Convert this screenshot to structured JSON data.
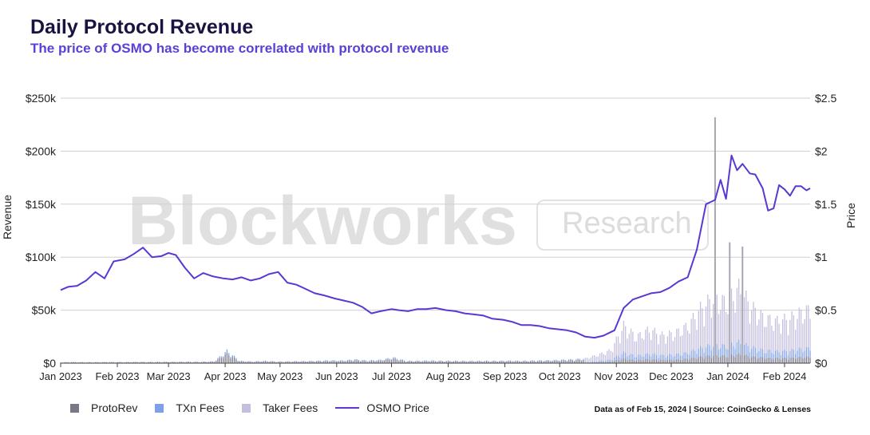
{
  "header": {
    "title": "Daily Protocol Revenue",
    "subtitle": "The price of OSMO has become correlated with protocol revenue"
  },
  "watermark": {
    "brand": "Blockworks",
    "tag": "Research"
  },
  "footer": {
    "source": "Data as of Feb 15, 2024 | Source: CoinGecko & Lenses"
  },
  "colors": {
    "protorev": "#7a7788",
    "txn_fees": "#7ea0ec",
    "taker_fees": "#c4bedf",
    "price": "#5a38d1",
    "grid": "#cfcfcf",
    "watermark": "#e0e0e0"
  },
  "chart_data": {
    "type": "bar",
    "stacked": true,
    "x_axis": {
      "type": "date",
      "range": [
        "2023-01-01",
        "2024-02-15"
      ],
      "tick_labels": [
        "Jan 2023",
        "Feb 2023",
        "Mar 2023",
        "Apr 2023",
        "May 2023",
        "Jun 2023",
        "Jul 2023",
        "Aug 2023",
        "Sep 2023",
        "Oct 2023",
        "Nov 2023",
        "Dec 2023",
        "Jan 2024",
        "Feb 2024"
      ]
    },
    "y_axis_left": {
      "label": "Revenue",
      "range": [
        0,
        250000
      ],
      "tick_values": [
        0,
        50000,
        100000,
        150000,
        200000,
        250000
      ],
      "tick_labels": [
        "$0",
        "$50k",
        "$100k",
        "$150k",
        "$200k",
        "$250k"
      ]
    },
    "y_axis_right": {
      "label": "Price",
      "range": [
        0,
        2.5
      ],
      "tick_values": [
        0,
        0.5,
        1,
        1.5,
        2,
        2.5
      ],
      "tick_labels": [
        "$0",
        "$0.5",
        "$1",
        "$1.5",
        "$2",
        "$2.5"
      ]
    },
    "grid": true,
    "legend": {
      "position": "bottom-left",
      "entries": [
        "ProtoRev",
        "TXn Fees",
        "Taker Fees",
        "OSMO Price"
      ]
    },
    "bar_series": [
      {
        "name": "ProtoRev",
        "color_key": "protorev"
      },
      {
        "name": "TXn Fees",
        "color_key": "txn_fees"
      },
      {
        "name": "Taker Fees",
        "color_key": "taker_fees"
      }
    ],
    "revenue_weekly_totals": [
      {
        "date": "2023-01-01",
        "total": 1000
      },
      {
        "date": "2023-01-08",
        "total": 1200
      },
      {
        "date": "2023-01-15",
        "total": 1000
      },
      {
        "date": "2023-01-22",
        "total": 1100
      },
      {
        "date": "2023-01-29",
        "total": 1300
      },
      {
        "date": "2023-02-05",
        "total": 1200
      },
      {
        "date": "2023-02-12",
        "total": 1400
      },
      {
        "date": "2023-02-19",
        "total": 1300
      },
      {
        "date": "2023-02-26",
        "total": 1500
      },
      {
        "date": "2023-03-05",
        "total": 1400
      },
      {
        "date": "2023-03-12",
        "total": 1600
      },
      {
        "date": "2023-03-19",
        "total": 1500
      },
      {
        "date": "2023-03-26",
        "total": 2000
      },
      {
        "date": "2023-04-02",
        "total": 13000
      },
      {
        "date": "2023-04-09",
        "total": 2500
      },
      {
        "date": "2023-04-16",
        "total": 1800
      },
      {
        "date": "2023-04-23",
        "total": 2500
      },
      {
        "date": "2023-04-30",
        "total": 1700
      },
      {
        "date": "2023-05-07",
        "total": 2000
      },
      {
        "date": "2023-05-14",
        "total": 2200
      },
      {
        "date": "2023-05-21",
        "total": 2500
      },
      {
        "date": "2023-05-28",
        "total": 3000
      },
      {
        "date": "2023-06-04",
        "total": 2800
      },
      {
        "date": "2023-06-11",
        "total": 4000
      },
      {
        "date": "2023-06-18",
        "total": 2800
      },
      {
        "date": "2023-06-25",
        "total": 3500
      },
      {
        "date": "2023-07-02",
        "total": 6000
      },
      {
        "date": "2023-07-09",
        "total": 2500
      },
      {
        "date": "2023-07-16",
        "total": 2500
      },
      {
        "date": "2023-07-23",
        "total": 2800
      },
      {
        "date": "2023-07-30",
        "total": 2500
      },
      {
        "date": "2023-08-06",
        "total": 2500
      },
      {
        "date": "2023-08-13",
        "total": 2400
      },
      {
        "date": "2023-08-20",
        "total": 2500
      },
      {
        "date": "2023-08-27",
        "total": 2500
      },
      {
        "date": "2023-09-03",
        "total": 2600
      },
      {
        "date": "2023-09-10",
        "total": 2500
      },
      {
        "date": "2023-09-17",
        "total": 2800
      },
      {
        "date": "2023-09-24",
        "total": 3000
      },
      {
        "date": "2023-10-01",
        "total": 3500
      },
      {
        "date": "2023-10-08",
        "total": 4000
      },
      {
        "date": "2023-10-15",
        "total": 5000
      },
      {
        "date": "2023-10-22",
        "total": 9000
      },
      {
        "date": "2023-10-29",
        "total": 14000
      },
      {
        "date": "2023-11-05",
        "total": 40000
      },
      {
        "date": "2023-11-12",
        "total": 28000
      },
      {
        "date": "2023-11-19",
        "total": 36000
      },
      {
        "date": "2023-11-26",
        "total": 30000
      },
      {
        "date": "2023-12-03",
        "total": 32000
      },
      {
        "date": "2023-12-10",
        "total": 40000
      },
      {
        "date": "2023-12-17",
        "total": 58000
      },
      {
        "date": "2023-12-24",
        "total": 70000
      },
      {
        "date": "2023-12-31",
        "total": 65000
      },
      {
        "date": "2024-01-07",
        "total": 80000
      },
      {
        "date": "2024-01-14",
        "total": 60000
      },
      {
        "date": "2024-01-21",
        "total": 48000
      },
      {
        "date": "2024-01-28",
        "total": 45000
      },
      {
        "date": "2024-02-04",
        "total": 48000
      },
      {
        "date": "2024-02-11",
        "total": 55000
      },
      {
        "date": "2024-02-15",
        "total": 57000
      }
    ],
    "revenue_spikes": [
      {
        "date": "2023-12-25",
        "total": 232000
      },
      {
        "date": "2024-01-02",
        "total": 114000
      },
      {
        "date": "2024-01-09",
        "total": 110000
      }
    ],
    "osmo_price": [
      {
        "date": "2023-01-01",
        "price": 0.69
      },
      {
        "date": "2023-01-05",
        "price": 0.72
      },
      {
        "date": "2023-01-10",
        "price": 0.73
      },
      {
        "date": "2023-01-15",
        "price": 0.78
      },
      {
        "date": "2023-01-20",
        "price": 0.86
      },
      {
        "date": "2023-01-25",
        "price": 0.8
      },
      {
        "date": "2023-01-30",
        "price": 0.96
      },
      {
        "date": "2023-02-05",
        "price": 0.98
      },
      {
        "date": "2023-02-10",
        "price": 1.03
      },
      {
        "date": "2023-02-15",
        "price": 1.09
      },
      {
        "date": "2023-02-20",
        "price": 1.0
      },
      {
        "date": "2023-02-25",
        "price": 1.01
      },
      {
        "date": "2023-03-01",
        "price": 1.04
      },
      {
        "date": "2023-03-05",
        "price": 1.02
      },
      {
        "date": "2023-03-10",
        "price": 0.9
      },
      {
        "date": "2023-03-15",
        "price": 0.8
      },
      {
        "date": "2023-03-20",
        "price": 0.85
      },
      {
        "date": "2023-03-25",
        "price": 0.82
      },
      {
        "date": "2023-03-31",
        "price": 0.8
      },
      {
        "date": "2023-04-05",
        "price": 0.79
      },
      {
        "date": "2023-04-10",
        "price": 0.81
      },
      {
        "date": "2023-04-15",
        "price": 0.78
      },
      {
        "date": "2023-04-20",
        "price": 0.8
      },
      {
        "date": "2023-04-25",
        "price": 0.84
      },
      {
        "date": "2023-04-30",
        "price": 0.86
      },
      {
        "date": "2023-05-05",
        "price": 0.76
      },
      {
        "date": "2023-05-10",
        "price": 0.74
      },
      {
        "date": "2023-05-15",
        "price": 0.7
      },
      {
        "date": "2023-05-20",
        "price": 0.66
      },
      {
        "date": "2023-05-25",
        "price": 0.64
      },
      {
        "date": "2023-05-31",
        "price": 0.61
      },
      {
        "date": "2023-06-05",
        "price": 0.59
      },
      {
        "date": "2023-06-10",
        "price": 0.57
      },
      {
        "date": "2023-06-15",
        "price": 0.53
      },
      {
        "date": "2023-06-20",
        "price": 0.47
      },
      {
        "date": "2023-06-25",
        "price": 0.49
      },
      {
        "date": "2023-07-01",
        "price": 0.51
      },
      {
        "date": "2023-07-05",
        "price": 0.5
      },
      {
        "date": "2023-07-10",
        "price": 0.49
      },
      {
        "date": "2023-07-15",
        "price": 0.51
      },
      {
        "date": "2023-07-20",
        "price": 0.51
      },
      {
        "date": "2023-07-25",
        "price": 0.52
      },
      {
        "date": "2023-07-31",
        "price": 0.5
      },
      {
        "date": "2023-08-05",
        "price": 0.49
      },
      {
        "date": "2023-08-10",
        "price": 0.47
      },
      {
        "date": "2023-08-15",
        "price": 0.46
      },
      {
        "date": "2023-08-20",
        "price": 0.45
      },
      {
        "date": "2023-08-25",
        "price": 0.42
      },
      {
        "date": "2023-08-31",
        "price": 0.41
      },
      {
        "date": "2023-09-05",
        "price": 0.39
      },
      {
        "date": "2023-09-10",
        "price": 0.36
      },
      {
        "date": "2023-09-15",
        "price": 0.36
      },
      {
        "date": "2023-09-20",
        "price": 0.35
      },
      {
        "date": "2023-09-25",
        "price": 0.33
      },
      {
        "date": "2023-09-30",
        "price": 0.32
      },
      {
        "date": "2023-10-05",
        "price": 0.31
      },
      {
        "date": "2023-10-10",
        "price": 0.29
      },
      {
        "date": "2023-10-15",
        "price": 0.25
      },
      {
        "date": "2023-10-20",
        "price": 0.24
      },
      {
        "date": "2023-10-25",
        "price": 0.26
      },
      {
        "date": "2023-10-31",
        "price": 0.31
      },
      {
        "date": "2023-11-05",
        "price": 0.52
      },
      {
        "date": "2023-11-10",
        "price": 0.6
      },
      {
        "date": "2023-11-15",
        "price": 0.63
      },
      {
        "date": "2023-11-20",
        "price": 0.66
      },
      {
        "date": "2023-11-25",
        "price": 0.67
      },
      {
        "date": "2023-11-30",
        "price": 0.71
      },
      {
        "date": "2023-12-05",
        "price": 0.77
      },
      {
        "date": "2023-12-10",
        "price": 0.81
      },
      {
        "date": "2023-12-15",
        "price": 1.07
      },
      {
        "date": "2023-12-20",
        "price": 1.5
      },
      {
        "date": "2023-12-25",
        "price": 1.54
      },
      {
        "date": "2023-12-28",
        "price": 1.73
      },
      {
        "date": "2023-12-31",
        "price": 1.55
      },
      {
        "date": "2024-01-03",
        "price": 1.96
      },
      {
        "date": "2024-01-06",
        "price": 1.82
      },
      {
        "date": "2024-01-09",
        "price": 1.88
      },
      {
        "date": "2024-01-13",
        "price": 1.79
      },
      {
        "date": "2024-01-16",
        "price": 1.78
      },
      {
        "date": "2024-01-20",
        "price": 1.65
      },
      {
        "date": "2024-01-23",
        "price": 1.44
      },
      {
        "date": "2024-01-26",
        "price": 1.46
      },
      {
        "date": "2024-01-29",
        "price": 1.68
      },
      {
        "date": "2024-02-01",
        "price": 1.64
      },
      {
        "date": "2024-02-04",
        "price": 1.58
      },
      {
        "date": "2024-02-07",
        "price": 1.67
      },
      {
        "date": "2024-02-10",
        "price": 1.67
      },
      {
        "date": "2024-02-13",
        "price": 1.63
      },
      {
        "date": "2024-02-15",
        "price": 1.65
      }
    ]
  }
}
